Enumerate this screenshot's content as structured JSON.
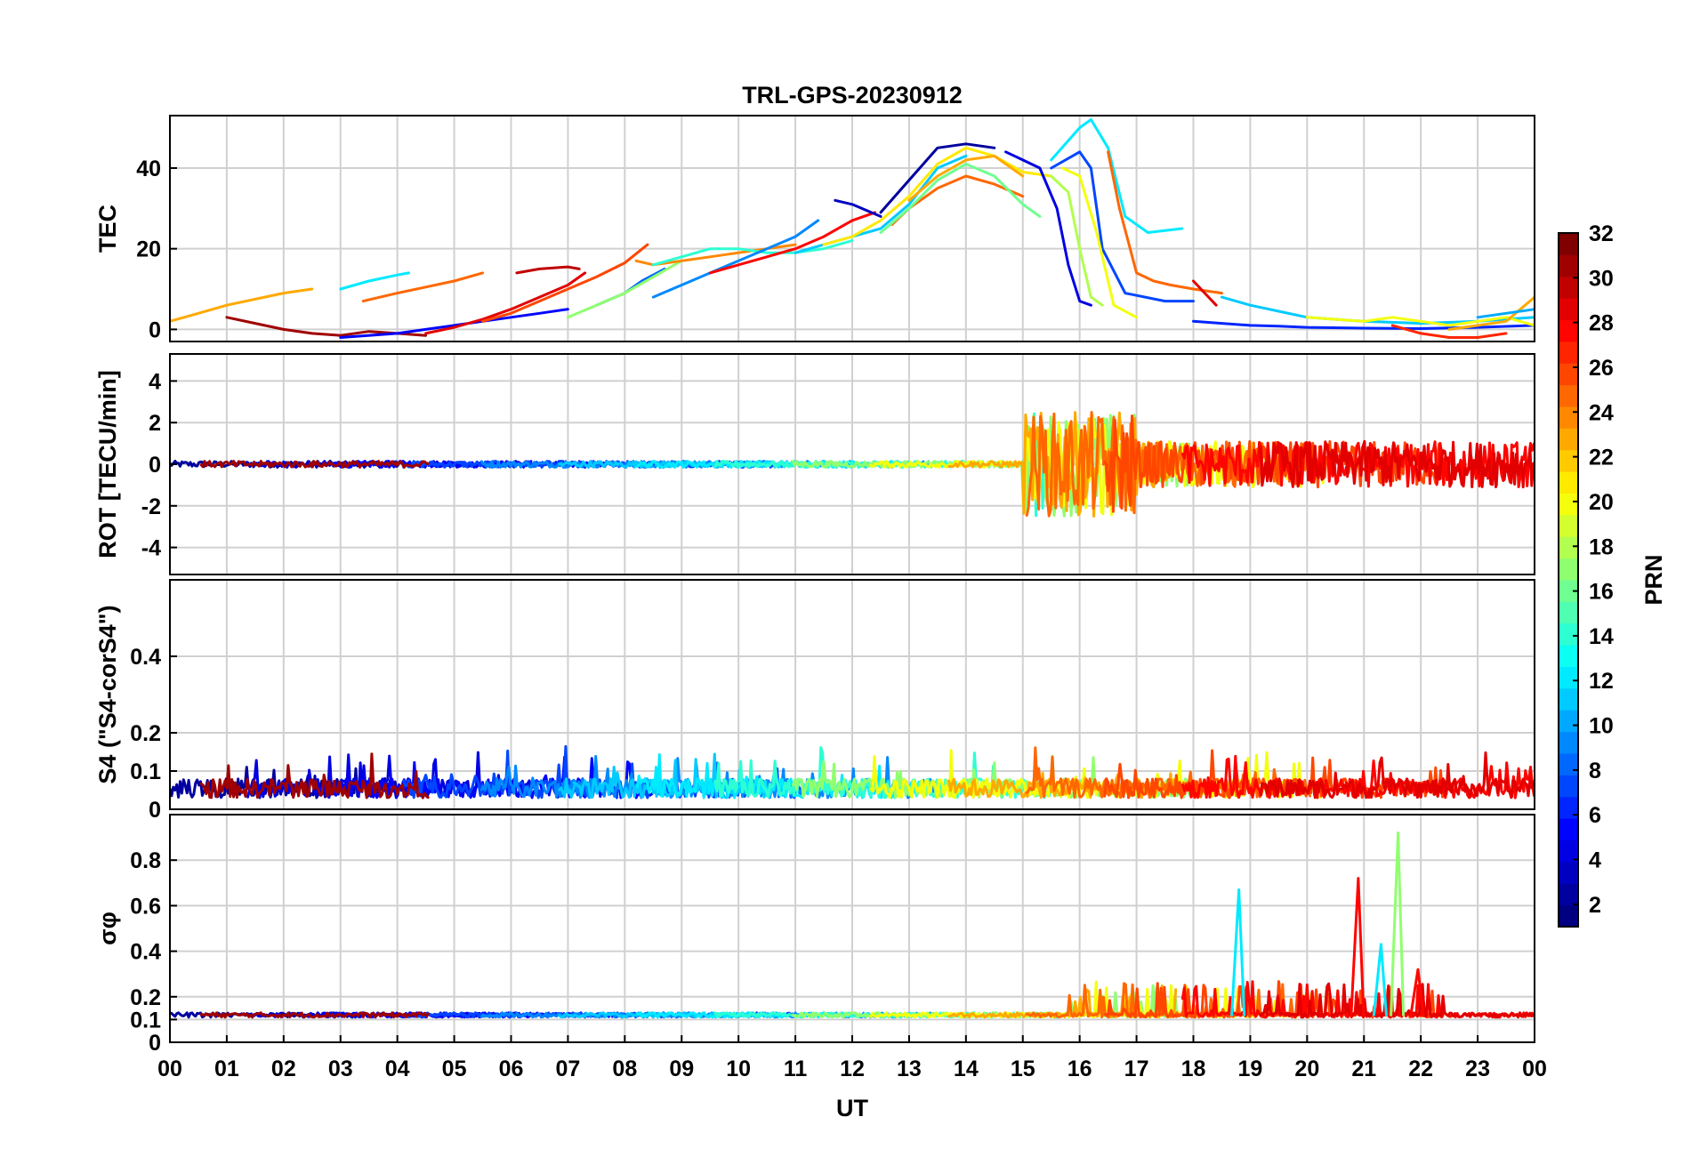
{
  "chart_data": {
    "type": "line",
    "title": "TRL-GPS-20230912",
    "xlabel": "UT",
    "x_ticks": [
      "00",
      "01",
      "02",
      "03",
      "04",
      "05",
      "06",
      "07",
      "08",
      "09",
      "10",
      "11",
      "12",
      "13",
      "14",
      "15",
      "16",
      "17",
      "18",
      "19",
      "20",
      "21",
      "22",
      "23",
      "00"
    ],
    "xlim": [
      0,
      24
    ],
    "panels": [
      {
        "id": "tec",
        "ylabel": "TEC",
        "ylim": [
          -3,
          53
        ],
        "yticks": [
          0,
          20,
          40
        ],
        "ytick_labels": [
          "0",
          "20",
          "40"
        ],
        "series": [
          {
            "name": "PRN 23",
            "prn": 23,
            "x": [
              0,
              0.5,
              1,
              1.5,
              2,
              2.5
            ],
            "values": [
              2,
              4,
              6,
              7.5,
              9,
              10
            ]
          },
          {
            "name": "PRN 12",
            "prn": 12,
            "x": [
              3,
              3.5,
              4,
              4.2
            ],
            "values": [
              10,
              12,
              13.5,
              14
            ]
          },
          {
            "name": "PRN 25",
            "prn": 25,
            "x": [
              3.4,
              4,
              4.5,
              5,
              5.5
            ],
            "values": [
              7,
              9,
              10.5,
              12,
              14
            ]
          },
          {
            "name": "PRN 31",
            "prn": 31,
            "x": [
              1,
              1.5,
              2,
              2.5,
              3,
              3.5,
              4,
              4.5
            ],
            "values": [
              3,
              1.5,
              0,
              -1,
              -1.5,
              -0.5,
              -1,
              -1.5
            ]
          },
          {
            "name": "PRN 5",
            "prn": 5,
            "x": [
              3,
              4,
              4.5,
              5,
              5.5,
              6,
              6.5,
              7
            ],
            "values": [
              -2,
              -1,
              0,
              1,
              2,
              3,
              4,
              5
            ]
          },
          {
            "name": "PRN 30",
            "prn": 30,
            "x": [
              6.1,
              6.5,
              7,
              7.2
            ],
            "values": [
              14,
              15,
              15.5,
              15
            ]
          },
          {
            "name": "PRN 29",
            "prn": 29,
            "x": [
              4.5,
              5,
              5.5,
              6,
              6.5,
              7,
              7.3
            ],
            "values": [
              -1,
              0.5,
              2.5,
              5,
              8,
              11,
              14
            ]
          },
          {
            "name": "PRN 26",
            "prn": 26,
            "x": [
              5.5,
              6,
              6.5,
              7,
              7.5,
              8,
              8.4
            ],
            "values": [
              2,
              4,
              7,
              10,
              13,
              16.5,
              21
            ]
          },
          {
            "name": "PRN 8",
            "prn": 8,
            "x": [
              7.5,
              8,
              8.3,
              8.7
            ],
            "values": [
              6,
              9,
              12,
              15
            ]
          },
          {
            "name": "PRN 17",
            "prn": 17,
            "x": [
              7,
              7.5,
              8,
              8.5,
              9
            ],
            "values": [
              3,
              6,
              9,
              13,
              17
            ]
          },
          {
            "name": "PRN 24",
            "prn": 24,
            "x": [
              8.2,
              8.5,
              9,
              9.5,
              10,
              10.5,
              11
            ],
            "values": [
              17,
              16,
              17,
              18,
              19,
              20,
              21
            ]
          },
          {
            "name": "PRN 14",
            "prn": 14,
            "x": [
              8.5,
              9,
              9.5,
              10,
              10.5,
              11,
              11.5,
              12
            ],
            "values": [
              16,
              18,
              20,
              20,
              19,
              19,
              20,
              22
            ]
          },
          {
            "name": "PRN 9",
            "prn": 9,
            "x": [
              8.5,
              9,
              9.5,
              10,
              10.5,
              11,
              11.4
            ],
            "values": [
              8,
              11,
              14,
              17,
              20,
              23,
              27
            ]
          },
          {
            "name": "PRN 28",
            "prn": 28,
            "x": [
              9.5,
              10,
              10.5,
              11,
              11.5,
              12,
              12.4
            ],
            "values": [
              14,
              16,
              18,
              20,
              23,
              27,
              29
            ]
          },
          {
            "name": "PRN 3",
            "prn": 3,
            "x": [
              11.7,
              12,
              12.5
            ],
            "values": [
              32,
              31,
              28
            ]
          },
          {
            "name": "PRN 11",
            "prn": 11,
            "x": [
              11,
              11.5,
              12,
              12.5,
              13,
              13.5,
              14
            ],
            "values": [
              19,
              21,
              23,
              25,
              31,
              40,
              43
            ]
          },
          {
            "name": "PRN 21",
            "prn": 21,
            "x": [
              11.5,
              12,
              12.5,
              13,
              13.5,
              14,
              14.5,
              15,
              15.5
            ],
            "values": [
              21,
              23,
              27,
              33,
              41,
              45,
              43,
              39,
              38
            ]
          },
          {
            "name": "PRN 2",
            "prn": 2,
            "x": [
              12.5,
              13,
              13.5,
              14,
              14.5
            ],
            "values": [
              29,
              37,
              45,
              46,
              45
            ]
          },
          {
            "name": "PRN 23b",
            "prn": 23,
            "x": [
              13,
              13.5,
              14,
              14.5,
              15
            ],
            "values": [
              32,
              38,
              42,
              43,
              38
            ]
          },
          {
            "name": "PRN 25b",
            "prn": 25,
            "x": [
              12.7,
              13,
              13.5,
              14,
              14.5,
              15
            ],
            "values": [
              26,
              30,
              35,
              38,
              36,
              33
            ]
          },
          {
            "name": "PRN 16",
            "prn": 16,
            "x": [
              12.5,
              13,
              13.5,
              14,
              14.5,
              15,
              15.3
            ],
            "values": [
              24,
              30,
              37,
              41,
              38,
              31,
              28
            ]
          },
          {
            "name": "PRN 4",
            "prn": 4,
            "x": [
              14.7,
              15,
              15.3,
              15.6,
              15.8,
              16,
              16.2
            ],
            "values": [
              44,
              42,
              40,
              30,
              16,
              7,
              6
            ]
          },
          {
            "name": "PRN 7",
            "prn": 7,
            "x": [
              15.5,
              16,
              16.2,
              16.4,
              16.8,
              17.5,
              18
            ],
            "values": [
              40,
              44,
              40,
              20,
              9,
              7,
              7
            ]
          },
          {
            "name": "PRN 18",
            "prn": 18,
            "x": [
              15.5,
              15.8,
              16,
              16.2,
              16.4
            ],
            "values": [
              38,
              34,
              20,
              8,
              6
            ]
          },
          {
            "name": "PRN 20",
            "prn": 20,
            "x": [
              15.7,
              16,
              16.3,
              16.6,
              17
            ],
            "values": [
              40,
              38,
              24,
              6,
              3
            ]
          },
          {
            "name": "PRN 12b",
            "prn": 12,
            "x": [
              15.5,
              16,
              16.2,
              16.5,
              16.8,
              17.2,
              17.8
            ],
            "values": [
              42,
              50,
              52,
              45,
              28,
              24,
              25
            ]
          },
          {
            "name": "PRN 25c",
            "prn": 25,
            "x": [
              16.5,
              16.7,
              17,
              17.3,
              17.6,
              18,
              18.5
            ],
            "values": [
              44,
              30,
              14,
              12,
              11,
              10,
              9
            ]
          },
          {
            "name": "PRN 29b",
            "prn": 29,
            "x": [
              18,
              18.2,
              18.4
            ],
            "values": [
              12,
              9,
              6
            ]
          },
          {
            "name": "PRN 11b",
            "prn": 11,
            "x": [
              18.5,
              19,
              19.5,
              20,
              20.5,
              21,
              22,
              23,
              24
            ],
            "values": [
              8,
              6,
              4.5,
              3,
              2.5,
              2,
              1.5,
              2,
              3
            ]
          },
          {
            "name": "PRN 6",
            "prn": 6,
            "x": [
              18,
              18.5,
              19,
              19.5,
              20,
              21,
              22,
              23,
              24
            ],
            "values": [
              2,
              1.5,
              1,
              0.8,
              0.5,
              0.3,
              0.2,
              0.5,
              1
            ]
          },
          {
            "name": "PRN 20b",
            "prn": 20,
            "x": [
              20,
              20.5,
              21,
              21.5,
              22,
              22.5,
              23,
              23.5,
              24
            ],
            "values": [
              3,
              2.5,
              2,
              3,
              2,
              1,
              2,
              3,
              1
            ]
          },
          {
            "name": "PRN 27",
            "prn": 27,
            "x": [
              21.5,
              22,
              22.5,
              23,
              23.5
            ],
            "values": [
              1,
              -1,
              -2,
              -2,
              -1
            ]
          },
          {
            "name": "PRN 23c",
            "prn": 23,
            "x": [
              22.5,
              23,
              23.5,
              24
            ],
            "values": [
              0,
              1,
              2,
              8
            ]
          },
          {
            "name": "PRN 10",
            "prn": 10,
            "x": [
              23,
              23.5,
              24
            ],
            "values": [
              3,
              4,
              5
            ]
          }
        ]
      },
      {
        "id": "rot",
        "ylabel": "ROT [TECU/min]",
        "ylim": [
          -5.3,
          5.3
        ],
        "yticks": [
          -4,
          -2,
          0,
          2,
          4
        ],
        "ytick_labels": [
          "-4",
          "-2",
          "0",
          "2",
          "4"
        ]
      },
      {
        "id": "s4",
        "ylabel": "S4 (\"S4-corS4\")",
        "ylim": [
          0,
          0.6
        ],
        "yticks": [
          0,
          0.1,
          0.2,
          0.4
        ],
        "ytick_labels": [
          "0",
          "0.1",
          "0.2",
          "0.4"
        ]
      },
      {
        "id": "sigma",
        "ylabel": "σφ",
        "ylim": [
          0,
          1.0
        ],
        "yticks": [
          0,
          0.1,
          0.2,
          0.4,
          0.6,
          0.8
        ],
        "ytick_labels": [
          "0",
          "0.1",
          "0.2",
          "0.4",
          "0.6",
          "0.8"
        ],
        "spikes": [
          {
            "prn": 12,
            "x": 18.8,
            "value": 0.67
          },
          {
            "prn": 28,
            "x": 20.9,
            "value": 0.72
          },
          {
            "prn": 17,
            "x": 21.6,
            "value": 0.92
          },
          {
            "prn": 28,
            "x": 21.95,
            "value": 0.32
          },
          {
            "prn": 12,
            "x": 21.3,
            "value": 0.43
          }
        ]
      }
    ],
    "colorbar": {
      "label": "PRN",
      "range": [
        1,
        32
      ],
      "ticks": [
        "2",
        "4",
        "6",
        "8",
        "10",
        "12",
        "14",
        "16",
        "18",
        "20",
        "22",
        "24",
        "26",
        "28",
        "30",
        "32"
      ],
      "colormap": "jet"
    }
  }
}
